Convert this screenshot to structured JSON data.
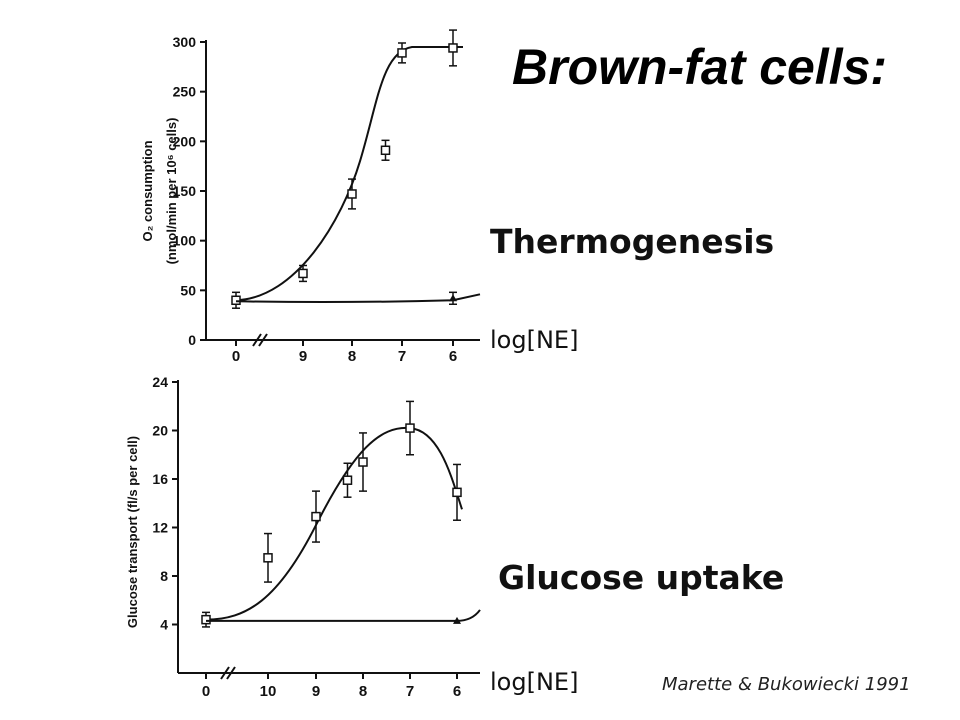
{
  "slide": {
    "title": "Brown-fat cells:",
    "thermogenesis_label": "Thermogenesis",
    "glucose_label": "Glucose uptake",
    "xaxis_label_top": "log[NE]",
    "xaxis_label_bottom": "log[NE]",
    "citation": "Marette & Bukowiecki 1991"
  },
  "chart_data": [
    {
      "type": "line",
      "ylabel_line1": "O₂ consumption",
      "ylabel_line2": "(nmol/min per 10⁶ cells)",
      "ylim": [
        0,
        300
      ],
      "yticks": [
        0,
        50,
        100,
        150,
        200,
        250,
        300
      ],
      "xtick_labels": [
        "0",
        "9",
        "8",
        "7",
        "6"
      ],
      "series": [
        {
          "points": [
            {
              "x": "0",
              "y": 40,
              "err": 8
            },
            {
              "x": "9",
              "y": 67,
              "err": 8
            },
            {
              "x": "8",
              "y": 147,
              "err": 15
            },
            {
              "x": "7.33",
              "y": 191,
              "err": 10
            },
            {
              "x": "7",
              "y": 289,
              "err": 10
            },
            {
              "x": "6",
              "y": 294,
              "err": 18
            }
          ]
        },
        {
          "points": [
            {
              "x": "0",
              "y": 38
            },
            {
              "x": "6",
              "y": 42,
              "err": 6
            }
          ]
        }
      ]
    },
    {
      "type": "line",
      "ylabel": "Glucose transport (fl/s per cell)",
      "ylim": [
        0,
        24
      ],
      "yticks": [
        4,
        8,
        12,
        16,
        20,
        24
      ],
      "xtick_labels": [
        "0",
        "10",
        "9",
        "8",
        "7",
        "6"
      ],
      "series": [
        {
          "points": [
            {
              "x": "0",
              "y": 4.4,
              "err": 0.6
            },
            {
              "x": "10",
              "y": 9.5,
              "err": 2.0
            },
            {
              "x": "9",
              "y": 12.9,
              "err": 2.1
            },
            {
              "x": "8.33",
              "y": 15.9,
              "err": 1.4
            },
            {
              "x": "8",
              "y": 17.4,
              "err": 2.4
            },
            {
              "x": "7",
              "y": 20.2,
              "err": 2.2
            },
            {
              "x": "6",
              "y": 14.9,
              "err": 2.3
            }
          ]
        },
        {
          "points": [
            {
              "x": "0",
              "y": 4.3
            },
            {
              "x": "6",
              "y": 4.3
            }
          ]
        }
      ]
    }
  ]
}
